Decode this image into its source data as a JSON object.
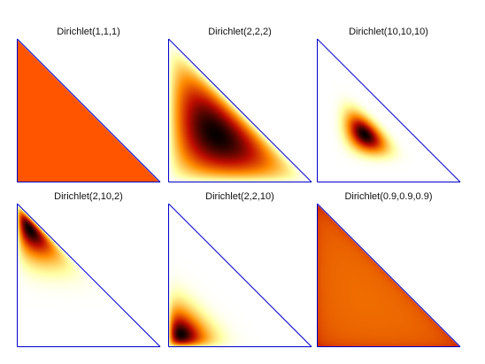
{
  "chart_data": [
    {
      "type": "heatmap",
      "title": "Dirichlet(1,1,1)",
      "alpha": [
        1,
        1,
        1
      ]
    },
    {
      "type": "heatmap",
      "title": "Dirichlet(2,2,2)",
      "alpha": [
        2,
        2,
        2
      ]
    },
    {
      "type": "heatmap",
      "title": "Dirichlet(10,10,10)",
      "alpha": [
        10,
        10,
        10
      ]
    },
    {
      "type": "heatmap",
      "title": "Dirichlet(2,10,2)",
      "alpha": [
        2,
        10,
        2
      ]
    },
    {
      "type": "heatmap",
      "title": "Dirichlet(2,2,10)",
      "alpha": [
        2,
        2,
        10
      ]
    },
    {
      "type": "heatmap",
      "title": "Dirichlet(0.9,0.9,0.9)",
      "alpha": [
        0.9,
        0.9,
        0.9
      ]
    }
  ],
  "colors": {
    "axis": "#0000cc",
    "colormap": "hot-inverted"
  }
}
